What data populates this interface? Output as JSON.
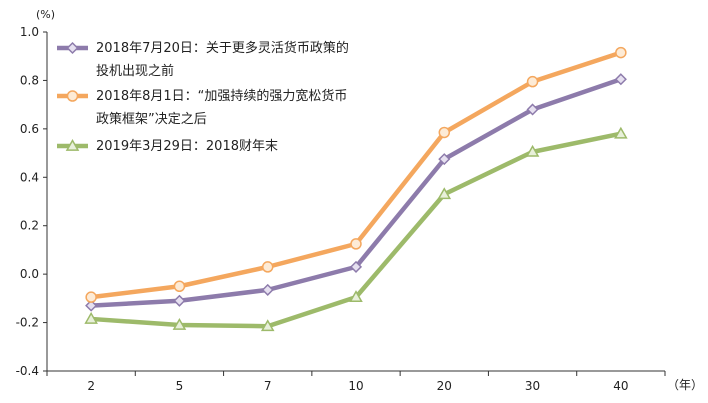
{
  "chart_data": {
    "type": "line",
    "ylabel": "(%)",
    "x_unit_label": "（年）",
    "categories": [
      "2",
      "5",
      "7",
      "10",
      "20",
      "30",
      "40"
    ],
    "ylim": [
      -0.4,
      1.0
    ],
    "yticks": [
      "1.0",
      "0.8",
      "0.6",
      "0.4",
      "0.2",
      "0.0",
      "-0.2",
      "-0.4"
    ],
    "grid": false,
    "legend_position": "top-left",
    "series": [
      {
        "name": "2018年7月20日：关于更多灵活货币政策的投机出现之前",
        "name_lines": [
          "2018年7月20日：关于更多灵活货币政策的",
          "投机出现之前"
        ],
        "color": "#8d7bab",
        "marker": "diamond",
        "values": [
          -0.13,
          -0.11,
          -0.065,
          0.03,
          0.475,
          0.68,
          0.805
        ]
      },
      {
        "name": "2018年8月1日：“加强持续的强力宽松货币政策框架”决定之后",
        "name_lines": [
          "2018年8月1日：“加强持续的强力宽松货币",
          "政策框架”决定之后"
        ],
        "color": "#f4a75e",
        "marker": "circle",
        "values": [
          -0.095,
          -0.05,
          0.03,
          0.125,
          0.585,
          0.795,
          0.915
        ]
      },
      {
        "name": "2019年3月29日：2018财年末",
        "name_lines": [
          "2019年3月29日：2018财年末"
        ],
        "color": "#9dba6a",
        "marker": "triangle",
        "values": [
          -0.185,
          -0.21,
          -0.215,
          -0.095,
          0.33,
          0.505,
          0.58
        ]
      }
    ]
  }
}
